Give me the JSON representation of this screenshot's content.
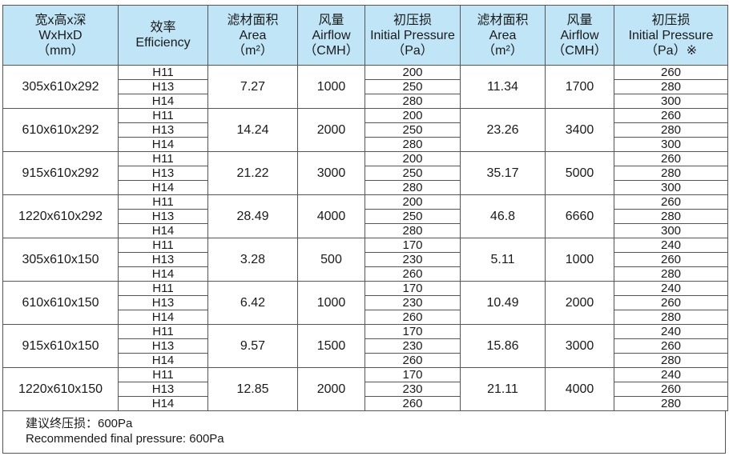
{
  "headers": [
    {
      "l1": "宽x高x深",
      "l2": "WxHxD",
      "l3": "（mm）"
    },
    {
      "l1": "效率",
      "l2": "Efficiency",
      "l3": ""
    },
    {
      "l1": "滤材面积",
      "l2": "Area",
      "l3": "（m²）"
    },
    {
      "l1": "风量",
      "l2": "Airflow",
      "l3": "（CMH）"
    },
    {
      "l1": "初压损",
      "l2": "Initial  Pressure",
      "l3": "（Pa）"
    },
    {
      "l1": "滤材面积",
      "l2": "Area",
      "l3": "（m²）"
    },
    {
      "l1": "风量",
      "l2": "Airflow",
      "l3": "（CMH）"
    },
    {
      "l1": "初压损",
      "l2": "Initial  Pressure",
      "l3": "（Pa）※"
    }
  ],
  "rows": [
    {
      "size": "305x610x292",
      "eff": [
        "H11",
        "H13",
        "H14"
      ],
      "area1": "7.27",
      "air1": "1000",
      "p1": [
        "200",
        "250",
        "280"
      ],
      "area2": "11.34",
      "air2": "1700",
      "p2": [
        "260",
        "280",
        "300"
      ]
    },
    {
      "size": "610x610x292",
      "eff": [
        "H11",
        "H13",
        "H14"
      ],
      "area1": "14.24",
      "air1": "2000",
      "p1": [
        "200",
        "250",
        "280"
      ],
      "area2": "23.26",
      "air2": "3400",
      "p2": [
        "260",
        "280",
        "300"
      ]
    },
    {
      "size": "915x610x292",
      "eff": [
        "H11",
        "H13",
        "H14"
      ],
      "area1": "21.22",
      "air1": "3000",
      "p1": [
        "200",
        "250",
        "280"
      ],
      "area2": "35.17",
      "air2": "5000",
      "p2": [
        "260",
        "280",
        "300"
      ]
    },
    {
      "size": "1220x610x292",
      "eff": [
        "H11",
        "H13",
        "H14"
      ],
      "area1": "28.49",
      "air1": "4000",
      "p1": [
        "200",
        "250",
        "280"
      ],
      "area2": "46.8",
      "air2": "6660",
      "p2": [
        "260",
        "280",
        "300"
      ]
    },
    {
      "size": "305x610x150",
      "eff": [
        "H11",
        "H13",
        "H14"
      ],
      "area1": "3.28",
      "air1": "500",
      "p1": [
        "170",
        "230",
        "260"
      ],
      "area2": "5.11",
      "air2": "1000",
      "p2": [
        "240",
        "260",
        "280"
      ]
    },
    {
      "size": "610x610x150",
      "eff": [
        "H11",
        "H13",
        "H14"
      ],
      "area1": "6.42",
      "air1": "1000",
      "p1": [
        "170",
        "230",
        "260"
      ],
      "area2": "10.49",
      "air2": "2000",
      "p2": [
        "240",
        "260",
        "280"
      ]
    },
    {
      "size": "915x610x150",
      "eff": [
        "H11",
        "H13",
        "H14"
      ],
      "area1": "9.57",
      "air1": "1500",
      "p1": [
        "170",
        "230",
        "260"
      ],
      "area2": "15.86",
      "air2": "3000",
      "p2": [
        "240",
        "260",
        "280"
      ]
    },
    {
      "size": "1220x610x150",
      "eff": [
        "H11",
        "H13",
        "H14"
      ],
      "area1": "12.85",
      "air1": "2000",
      "p1": [
        "170",
        "230",
        "260"
      ],
      "area2": "21.11",
      "air2": "4000",
      "p2": [
        "240",
        "260",
        "280"
      ]
    }
  ],
  "note": {
    "line1": "建议终压损：600Pa",
    "line2": "Recommended final pressure: 600Pa"
  },
  "colors": {
    "header_bg": "#bfe5f6",
    "border": "#555555"
  }
}
